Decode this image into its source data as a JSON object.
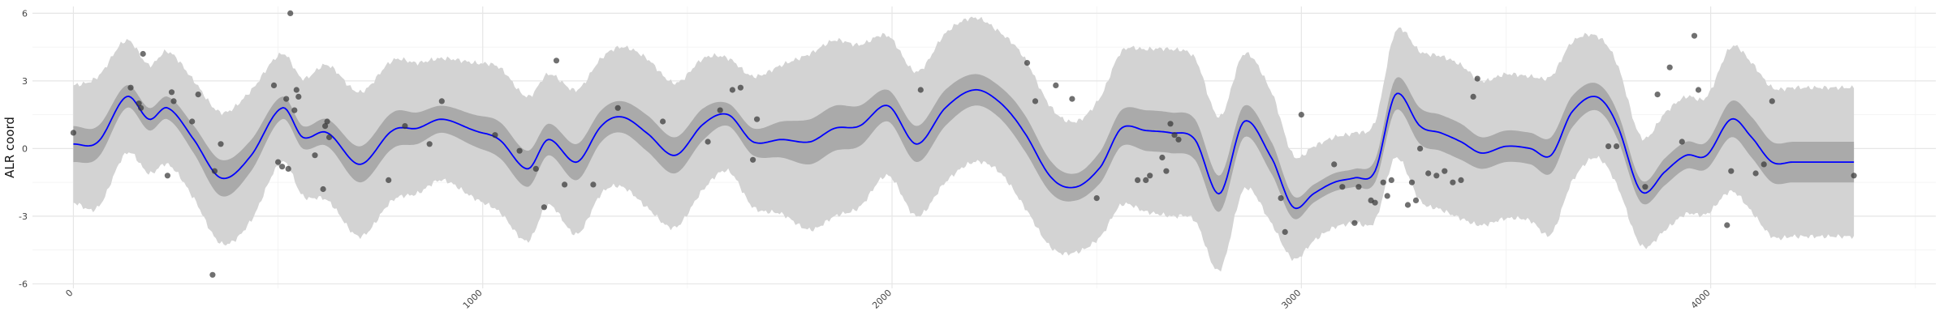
{
  "chart_data": {
    "type": "line",
    "title": "",
    "xlabel": "",
    "ylabel": "ALR coord",
    "xlim": [
      -100,
      4550
    ],
    "ylim": [
      -6.2,
      6.3
    ],
    "x_ticks": [
      0,
      1000,
      2000,
      3000,
      4000
    ],
    "x_tick_labels": [
      "0",
      "1000",
      "2000",
      "3000",
      "4000"
    ],
    "y_ticks": [
      -6,
      -3,
      0,
      3,
      6
    ],
    "y_tick_labels": [
      "-6",
      "-3",
      "0",
      "3",
      "6"
    ],
    "grid": true,
    "legend": "none",
    "colors": {
      "mean_line": "#0000ff",
      "inner_band": "#aaaaaa",
      "outer_band": "#d3d3d3",
      "points": "#333333",
      "grid_major": "#e6e6e6",
      "grid_minor": "#f2f2f2"
    },
    "series": [
      {
        "kind": "mean",
        "x": [
          0,
          60,
          130,
          185,
          230,
          290,
          360,
          430,
          510,
          560,
          620,
          700,
          780,
          840,
          900,
          980,
          1040,
          1110,
          1160,
          1230,
          1290,
          1340,
          1400,
          1470,
          1540,
          1600,
          1660,
          1730,
          1800,
          1860,
          1920,
          1990,
          2060,
          2130,
          2200,
          2260,
          2320,
          2390,
          2450,
          2510,
          2560,
          2620,
          2680,
          2740,
          2800,
          2860,
          2930,
          2980,
          3030,
          3080,
          3130,
          3180,
          3230,
          3290,
          3340,
          3390,
          3440,
          3500,
          3560,
          3610,
          3660,
          3720,
          3770,
          3830,
          3890,
          3940,
          3990,
          4050,
          4100,
          4150,
          4200,
          4250,
          4300,
          4350
        ],
        "y": [
          0.2,
          0.3,
          2.3,
          1.3,
          1.8,
          0.5,
          -1.3,
          -0.4,
          1.8,
          0.5,
          0.7,
          -0.7,
          0.8,
          0.9,
          1.3,
          0.8,
          0.4,
          -0.9,
          0.4,
          -0.6,
          1.0,
          1.4,
          0.7,
          -0.3,
          1.1,
          1.5,
          0.3,
          0.4,
          0.3,
          0.9,
          1.0,
          1.9,
          0.2,
          1.8,
          2.6,
          2.1,
          0.8,
          -1.3,
          -1.7,
          -0.8,
          0.9,
          0.8,
          0.7,
          0.4,
          -2.0,
          1.2,
          -0.5,
          -2.6,
          -2.0,
          -1.5,
          -1.3,
          -1.0,
          2.4,
          1.0,
          0.7,
          0.3,
          -0.2,
          0.1,
          0.0,
          -0.3,
          1.6,
          2.3,
          1.1,
          -1.9,
          -1.0,
          -0.3,
          -0.3,
          1.3,
          0.5,
          -0.6,
          -0.6,
          -0.6,
          -0.6,
          -0.6
        ]
      },
      {
        "kind": "inner_band_halfwidth",
        "x": [
          0,
          60,
          130,
          185,
          230,
          290,
          360,
          430,
          510,
          560,
          620,
          700,
          780,
          840,
          900,
          980,
          1040,
          1110,
          1160,
          1230,
          1290,
          1340,
          1400,
          1470,
          1540,
          1600,
          1660,
          1730,
          1800,
          1860,
          1920,
          1990,
          2060,
          2130,
          2200,
          2260,
          2320,
          2390,
          2450,
          2510,
          2560,
          2620,
          2680,
          2740,
          2800,
          2860,
          2930,
          2980,
          3030,
          3080,
          3130,
          3180,
          3230,
          3290,
          3340,
          3390,
          3440,
          3500,
          3560,
          3610,
          3660,
          3720,
          3770,
          3830,
          3890,
          3940,
          3990,
          4050,
          4100,
          4150,
          4200,
          4250,
          4300,
          4350
        ],
        "y": [
          0.8,
          0.7,
          0.5,
          0.5,
          0.5,
          0.6,
          0.8,
          0.7,
          0.5,
          0.5,
          0.6,
          0.8,
          0.8,
          0.7,
          0.6,
          0.7,
          0.8,
          0.8,
          0.7,
          0.8,
          0.7,
          0.7,
          0.8,
          0.8,
          0.7,
          0.5,
          0.6,
          0.8,
          1.0,
          1.0,
          0.9,
          0.7,
          0.8,
          0.8,
          0.7,
          0.7,
          0.8,
          0.7,
          0.6,
          0.7,
          0.8,
          0.9,
          0.9,
          0.9,
          0.8,
          0.7,
          0.7,
          0.5,
          0.4,
          0.4,
          0.4,
          0.5,
          0.7,
          0.8,
          0.8,
          0.8,
          0.7,
          0.7,
          0.7,
          0.8,
          0.7,
          0.6,
          0.6,
          0.5,
          0.6,
          0.6,
          0.6,
          0.8,
          0.9,
          0.9,
          0.9,
          0.9,
          0.9,
          0.9
        ]
      },
      {
        "kind": "outer_band_halfwidth",
        "x": [
          0,
          60,
          130,
          185,
          230,
          290,
          360,
          430,
          510,
          560,
          620,
          700,
          780,
          840,
          900,
          980,
          1040,
          1110,
          1160,
          1230,
          1290,
          1340,
          1400,
          1470,
          1540,
          1600,
          1660,
          1730,
          1800,
          1860,
          1920,
          1990,
          2060,
          2130,
          2200,
          2260,
          2320,
          2390,
          2450,
          2510,
          2560,
          2620,
          2680,
          2740,
          2800,
          2860,
          2930,
          2980,
          3030,
          3080,
          3130,
          3180,
          3230,
          3290,
          3340,
          3390,
          3440,
          3500,
          3560,
          3610,
          3660,
          3720,
          3770,
          3830,
          3890,
          3940,
          3990,
          4050,
          4100,
          4150,
          4200,
          4250,
          4300,
          4350
        ],
        "y": [
          2.6,
          2.9,
          2.5,
          2.4,
          2.5,
          2.6,
          2.9,
          2.9,
          2.4,
          2.6,
          3.0,
          3.2,
          3.1,
          2.9,
          2.7,
          3.0,
          3.2,
          3.2,
          2.9,
          3.2,
          3.0,
          3.1,
          3.3,
          3.2,
          2.9,
          2.5,
          2.9,
          3.3,
          3.9,
          3.9,
          3.6,
          3.1,
          3.2,
          3.3,
          3.2,
          3.1,
          3.3,
          3.1,
          2.9,
          3.1,
          3.4,
          3.6,
          3.7,
          3.6,
          3.4,
          3.0,
          2.9,
          2.3,
          2.1,
          2.0,
          2.0,
          2.2,
          2.8,
          3.3,
          3.4,
          3.4,
          3.2,
          3.2,
          3.2,
          3.5,
          3.1,
          2.7,
          2.7,
          2.4,
          2.6,
          2.6,
          2.6,
          3.2,
          3.3,
          3.3,
          3.3,
          3.3,
          3.3,
          3.3
        ]
      },
      {
        "kind": "observations",
        "points": [
          [
            0,
            0.7
          ],
          [
            140,
            2.7
          ],
          [
            160,
            2.0
          ],
          [
            165,
            1.8
          ],
          [
            170,
            4.2
          ],
          [
            230,
            -1.2
          ],
          [
            240,
            2.5
          ],
          [
            245,
            2.1
          ],
          [
            290,
            1.2
          ],
          [
            305,
            2.4
          ],
          [
            340,
            -5.6
          ],
          [
            345,
            -1.0
          ],
          [
            360,
            0.2
          ],
          [
            490,
            2.8
          ],
          [
            500,
            -0.6
          ],
          [
            510,
            -0.8
          ],
          [
            520,
            2.2
          ],
          [
            525,
            -0.9
          ],
          [
            530,
            6.0
          ],
          [
            540,
            1.7
          ],
          [
            545,
            2.6
          ],
          [
            550,
            2.3
          ],
          [
            590,
            -0.3
          ],
          [
            610,
            -1.8
          ],
          [
            615,
            1.0
          ],
          [
            620,
            1.2
          ],
          [
            625,
            0.5
          ],
          [
            770,
            -1.4
          ],
          [
            810,
            1.0
          ],
          [
            870,
            0.2
          ],
          [
            900,
            2.1
          ],
          [
            1030,
            0.6
          ],
          [
            1090,
            -0.1
          ],
          [
            1130,
            -0.9
          ],
          [
            1150,
            -2.6
          ],
          [
            1180,
            3.9
          ],
          [
            1200,
            -1.6
          ],
          [
            1270,
            -1.6
          ],
          [
            1330,
            1.8
          ],
          [
            1440,
            1.2
          ],
          [
            1550,
            0.3
          ],
          [
            1580,
            1.7
          ],
          [
            1610,
            2.6
          ],
          [
            1630,
            2.7
          ],
          [
            1660,
            -0.5
          ],
          [
            1670,
            1.3
          ],
          [
            2070,
            2.6
          ],
          [
            2330,
            3.8
          ],
          [
            2350,
            2.1
          ],
          [
            2400,
            2.8
          ],
          [
            2440,
            2.2
          ],
          [
            2500,
            -2.2
          ],
          [
            2600,
            -1.4
          ],
          [
            2620,
            -1.4
          ],
          [
            2630,
            -1.2
          ],
          [
            2660,
            -0.4
          ],
          [
            2670,
            -1.0
          ],
          [
            2680,
            1.1
          ],
          [
            2690,
            0.6
          ],
          [
            2700,
            0.4
          ],
          [
            2950,
            -2.2
          ],
          [
            2960,
            -3.7
          ],
          [
            3000,
            1.5
          ],
          [
            3080,
            -0.7
          ],
          [
            3100,
            -1.7
          ],
          [
            3130,
            -3.3
          ],
          [
            3140,
            -1.7
          ],
          [
            3170,
            -2.3
          ],
          [
            3180,
            -2.4
          ],
          [
            3200,
            -1.5
          ],
          [
            3210,
            -2.1
          ],
          [
            3220,
            -1.4
          ],
          [
            3260,
            -2.5
          ],
          [
            3270,
            -1.5
          ],
          [
            3280,
            -2.3
          ],
          [
            3290,
            0.0
          ],
          [
            3310,
            -1.1
          ],
          [
            3330,
            -1.2
          ],
          [
            3350,
            -1.0
          ],
          [
            3370,
            -1.5
          ],
          [
            3390,
            -1.4
          ],
          [
            3420,
            2.3
          ],
          [
            3430,
            3.1
          ],
          [
            3750,
            0.1
          ],
          [
            3770,
            0.1
          ],
          [
            3840,
            -1.7
          ],
          [
            3870,
            2.4
          ],
          [
            3900,
            3.6
          ],
          [
            3930,
            0.3
          ],
          [
            3960,
            5.0
          ],
          [
            3970,
            2.6
          ],
          [
            4040,
            -3.4
          ],
          [
            4050,
            -1.0
          ],
          [
            4110,
            -1.1
          ],
          [
            4130,
            -0.7
          ],
          [
            4150,
            2.1
          ],
          [
            4350,
            -1.2
          ]
        ]
      }
    ]
  }
}
